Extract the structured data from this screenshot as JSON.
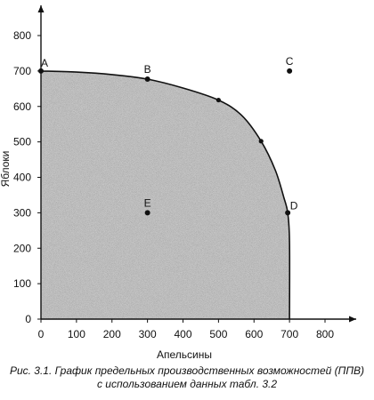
{
  "chart_data": {
    "type": "area",
    "xlabel": "Апельсины",
    "ylabel": "Яблоки",
    "xlim": [
      0,
      800
    ],
    "ylim": [
      0,
      800
    ],
    "x_ticks": [
      "0",
      "100",
      "200",
      "300",
      "400",
      "500",
      "600",
      "700",
      "800"
    ],
    "y_ticks": [
      "0",
      "100",
      "200",
      "300",
      "400",
      "500",
      "600",
      "700",
      "800"
    ],
    "grid": false,
    "curve": [
      {
        "x": 0,
        "y": 700
      },
      {
        "x": 100,
        "y": 697
      },
      {
        "x": 200,
        "y": 690
      },
      {
        "x": 300,
        "y": 677
      },
      {
        "x": 400,
        "y": 652
      },
      {
        "x": 500,
        "y": 618
      },
      {
        "x": 565,
        "y": 575
      },
      {
        "x": 620,
        "y": 502
      },
      {
        "x": 660,
        "y": 420
      },
      {
        "x": 685,
        "y": 340
      },
      {
        "x": 695,
        "y": 300
      },
      {
        "x": 700,
        "y": 220
      },
      {
        "x": 700,
        "y": 0
      }
    ],
    "curve_dots": [
      {
        "x": 500,
        "y": 618
      },
      {
        "x": 620,
        "y": 502
      }
    ],
    "points": [
      {
        "label": "A",
        "x": 0,
        "y": 700
      },
      {
        "label": "B",
        "x": 300,
        "y": 677
      },
      {
        "label": "C",
        "x": 700,
        "y": 700
      },
      {
        "label": "D",
        "x": 695,
        "y": 300
      },
      {
        "label": "E",
        "x": 300,
        "y": 300
      }
    ]
  },
  "caption": {
    "line1": "Рис. 3.1. График предельных производственных возможностей (ППВ)",
    "line2": "с использованием данных табл. 3.2"
  }
}
